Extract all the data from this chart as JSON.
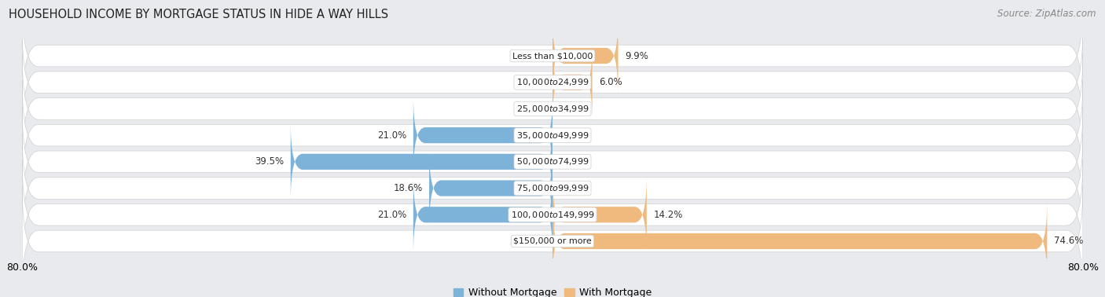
{
  "title": "HOUSEHOLD INCOME BY MORTGAGE STATUS IN HIDE A WAY HILLS",
  "source": "Source: ZipAtlas.com",
  "categories": [
    "Less than $10,000",
    "$10,000 to $24,999",
    "$25,000 to $34,999",
    "$35,000 to $49,999",
    "$50,000 to $74,999",
    "$75,000 to $99,999",
    "$100,000 to $149,999",
    "$150,000 or more"
  ],
  "without_mortgage": [
    0.0,
    0.0,
    0.0,
    21.0,
    39.5,
    18.6,
    21.0,
    0.0
  ],
  "with_mortgage": [
    9.9,
    6.0,
    0.0,
    0.0,
    0.0,
    0.0,
    14.2,
    74.6
  ],
  "color_without": "#7db3d8",
  "color_with": "#f0ba7f",
  "background_color": "#e8eaed",
  "row_bg_color": "#ebebed",
  "xlim_left": -80.0,
  "xlim_right": 80.0,
  "title_fontsize": 10.5,
  "source_fontsize": 8.5,
  "tick_fontsize": 9,
  "label_fontsize": 8.5,
  "cat_fontsize": 8.0
}
